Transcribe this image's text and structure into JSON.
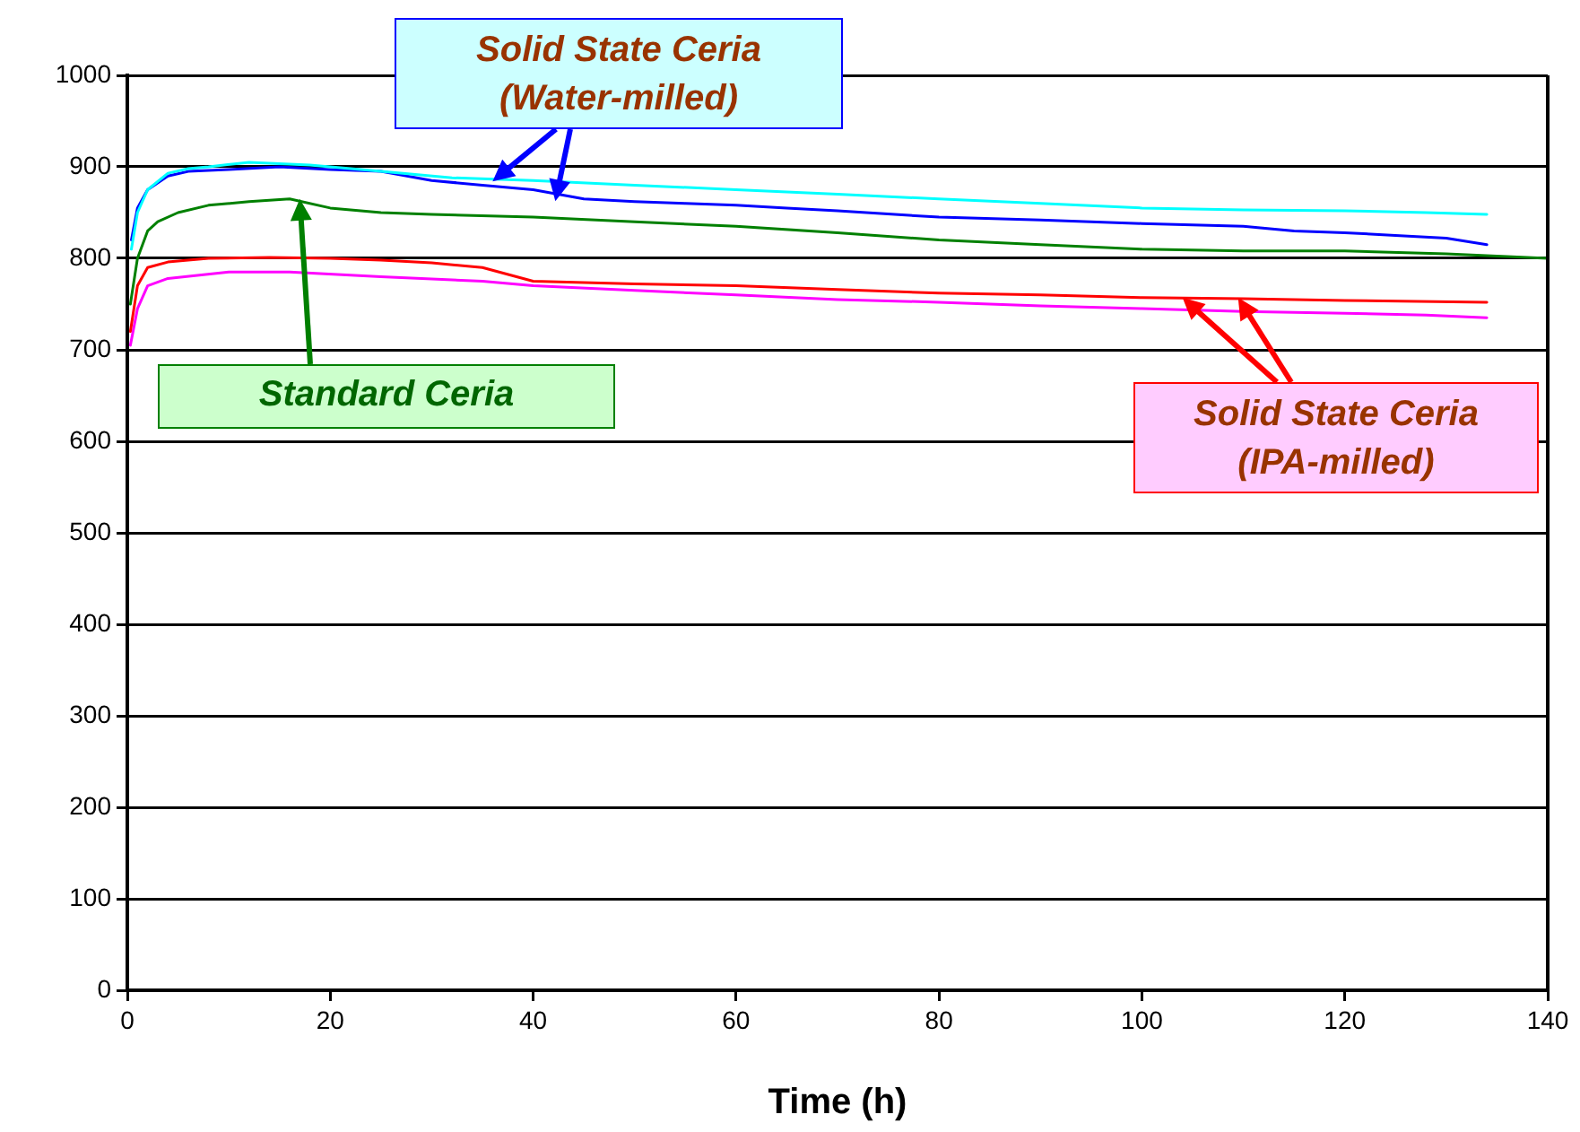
{
  "chart_data": {
    "type": "line",
    "xlabel": "Time (h)",
    "xlim": [
      0,
      140
    ],
    "xticks": [
      0,
      20,
      40,
      60,
      80,
      100,
      120,
      140
    ],
    "ylim": [
      0,
      1000
    ],
    "yticks": [
      0,
      100,
      200,
      300,
      400,
      500,
      600,
      700,
      800,
      900,
      1000
    ],
    "grid": "y",
    "legend": false,
    "marker": "none",
    "line_style": "solid",
    "annotations": [
      {
        "text": "Solid State Ceria\n(Water-milled)",
        "x": 36,
        "y": 884
      },
      {
        "text": "Standard Ceria",
        "x": 17,
        "y": 865
      },
      {
        "text": "Solid State Ceria\n(IPA-milled)",
        "x": 104,
        "y": 757
      }
    ],
    "series": [
      {
        "color": "#00ffff",
        "x": [
          0.4,
          1,
          2,
          4,
          6,
          8,
          12,
          18,
          25,
          32,
          40,
          50,
          60,
          70,
          80,
          90,
          100,
          110,
          120,
          128,
          134
        ],
        "values": [
          810,
          850,
          875,
          893,
          898,
          900,
          905,
          902,
          895,
          888,
          885,
          880,
          875,
          870,
          865,
          860,
          855,
          853,
          852,
          850,
          848
        ]
      },
      {
        "color": "#0000ff",
        "x": [
          0.4,
          1,
          2,
          4,
          6,
          10,
          15,
          20,
          25,
          30,
          35,
          40,
          45,
          50,
          55,
          60,
          65,
          70,
          80,
          90,
          100,
          110,
          115,
          120,
          125,
          130,
          134
        ],
        "values": [
          820,
          855,
          875,
          890,
          895,
          897,
          900,
          897,
          895,
          885,
          880,
          875,
          865,
          862,
          860,
          858,
          855,
          852,
          845,
          842,
          838,
          835,
          830,
          828,
          825,
          822,
          815
        ]
      },
      {
        "color": "#008000",
        "x": [
          0.3,
          1,
          2,
          3,
          5,
          8,
          12,
          16,
          20,
          25,
          30,
          40,
          50,
          60,
          70,
          80,
          90,
          100,
          110,
          120,
          130,
          140
        ],
        "values": [
          750,
          800,
          830,
          840,
          850,
          858,
          862,
          865,
          855,
          850,
          848,
          845,
          840,
          835,
          828,
          820,
          815,
          810,
          808,
          808,
          805,
          800
        ]
      },
      {
        "color": "#ff0000",
        "x": [
          0.3,
          1,
          2,
          4,
          8,
          14,
          20,
          25,
          30,
          35,
          40,
          50,
          60,
          70,
          80,
          90,
          100,
          110,
          120,
          134
        ],
        "values": [
          720,
          770,
          790,
          796,
          800,
          801,
          800,
          798,
          795,
          790,
          775,
          772,
          770,
          766,
          762,
          760,
          757,
          756,
          754,
          752
        ]
      },
      {
        "color": "#ff00ff",
        "x": [
          0.3,
          1,
          2,
          4,
          10,
          16,
          25,
          35,
          40,
          50,
          60,
          70,
          80,
          90,
          100,
          110,
          120,
          128,
          134
        ],
        "values": [
          705,
          745,
          770,
          778,
          785,
          785,
          780,
          775,
          770,
          765,
          760,
          755,
          752,
          748,
          745,
          742,
          740,
          738,
          735
        ]
      }
    ]
  }
}
